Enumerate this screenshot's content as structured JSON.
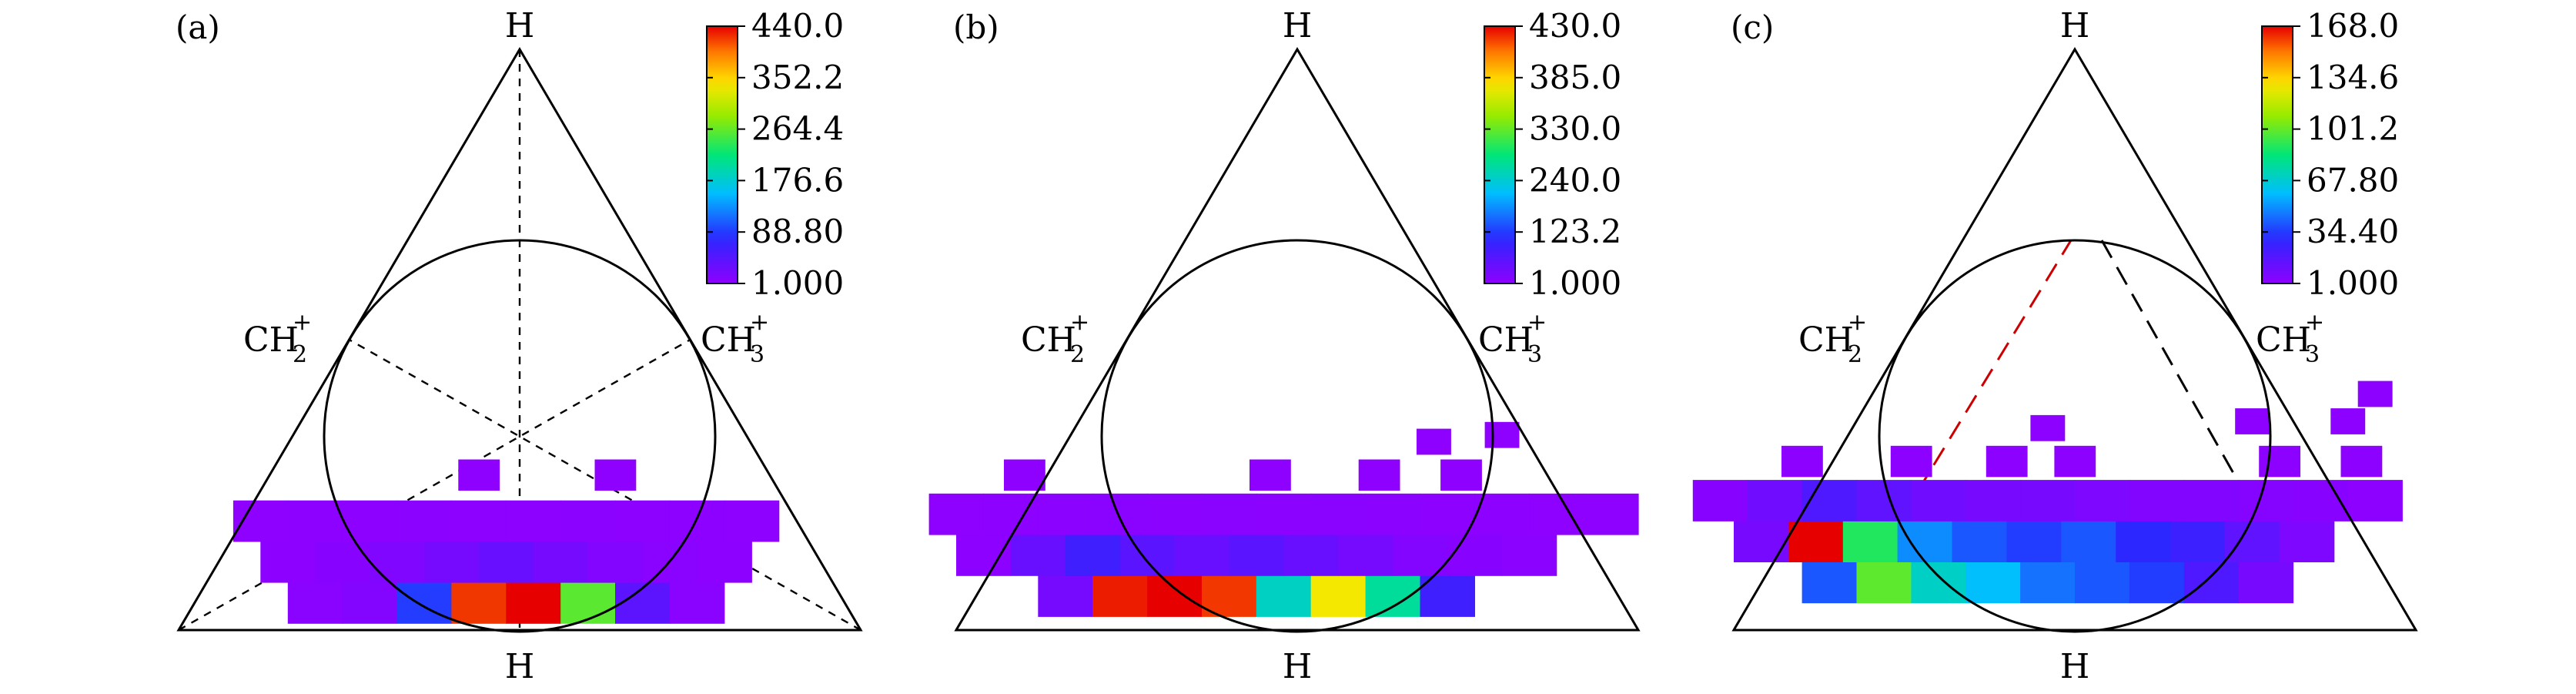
{
  "panels": [
    {
      "label": "(a)",
      "top_label": "H",
      "bottom_label": "H",
      "left_label": "CH",
      "left_sub": "2",
      "left_sup": "+",
      "right_label": "CH",
      "right_sup_sub": "3",
      "right_sup": "+",
      "colorbar_ticks": [
        "440.0",
        "352.2",
        "264.4",
        "176.6",
        "88.80",
        "1.000"
      ],
      "cmin": 1,
      "cmax": 440,
      "guides": "medians"
    },
    {
      "label": "(b)",
      "top_label": "H",
      "bottom_label": "H",
      "left_label": "CH",
      "left_sub": "2",
      "left_sup": "+",
      "right_label": "CH",
      "right_sup_sub": "3",
      "right_sup": "+",
      "colorbar_ticks": [
        "430.0",
        "385.0",
        "330.0",
        "240.0",
        "123.2",
        "1.000"
      ],
      "cmin": 1,
      "cmax": 430,
      "guides": "none"
    },
    {
      "label": "(c)",
      "top_label": "H",
      "bottom_label": "H",
      "left_label": "CH",
      "left_sub": "2",
      "left_sup": "+",
      "right_label": "CH",
      "right_sup_sub": "3",
      "right_sup": "+",
      "colorbar_ticks": [
        "168.0",
        "134.6",
        "101.2",
        "67.80",
        "34.40",
        "1.000"
      ],
      "cmin": 1,
      "cmax": 168,
      "guides": "dashed-pair",
      "guide_colors": [
        "#cc0000",
        "#000000"
      ]
    }
  ],
  "chart_data": [
    {
      "type": "heatmap",
      "subtype": "dalitz-triangle",
      "colormap": "rainbow (violet-blue-cyan-green-yellow-red)",
      "cells": [
        {
          "u": -0.3,
          "v": 0.03,
          "w": 0.08,
          "val": 5
        },
        {
          "u": -0.22,
          "v": 0.03,
          "w": 0.08,
          "val": 10
        },
        {
          "u": -0.14,
          "v": 0.03,
          "w": 0.08,
          "val": 90
        },
        {
          "u": -0.06,
          "v": 0.03,
          "w": 0.08,
          "val": 420
        },
        {
          "u": 0.02,
          "v": 0.03,
          "w": 0.08,
          "val": 440
        },
        {
          "u": 0.1,
          "v": 0.03,
          "w": 0.08,
          "val": 260
        },
        {
          "u": 0.18,
          "v": 0.03,
          "w": 0.08,
          "val": 40
        },
        {
          "u": 0.26,
          "v": 0.03,
          "w": 0.08,
          "val": 5
        },
        {
          "u": -0.34,
          "v": 0.09,
          "w": 0.08,
          "val": 3
        },
        {
          "u": -0.26,
          "v": 0.09,
          "w": 0.08,
          "val": 6
        },
        {
          "u": -0.18,
          "v": 0.09,
          "w": 0.08,
          "val": 12
        },
        {
          "u": -0.1,
          "v": 0.09,
          "w": 0.08,
          "val": 20
        },
        {
          "u": -0.02,
          "v": 0.09,
          "w": 0.08,
          "val": 30
        },
        {
          "u": 0.06,
          "v": 0.09,
          "w": 0.08,
          "val": 20
        },
        {
          "u": 0.14,
          "v": 0.09,
          "w": 0.08,
          "val": 10
        },
        {
          "u": 0.22,
          "v": 0.09,
          "w": 0.08,
          "val": 5
        },
        {
          "u": 0.3,
          "v": 0.09,
          "w": 0.08,
          "val": 3
        },
        {
          "u": -0.38,
          "v": 0.15,
          "w": 0.08,
          "val": 2
        },
        {
          "u": -0.3,
          "v": 0.15,
          "w": 0.08,
          "val": 3
        },
        {
          "u": -0.22,
          "v": 0.15,
          "w": 0.08,
          "val": 3
        },
        {
          "u": -0.14,
          "v": 0.15,
          "w": 0.08,
          "val": 4
        },
        {
          "u": -0.06,
          "v": 0.15,
          "w": 0.08,
          "val": 3
        },
        {
          "u": 0.02,
          "v": 0.15,
          "w": 0.08,
          "val": 3
        },
        {
          "u": 0.1,
          "v": 0.15,
          "w": 0.08,
          "val": 4
        },
        {
          "u": 0.18,
          "v": 0.15,
          "w": 0.08,
          "val": 3
        },
        {
          "u": 0.26,
          "v": 0.15,
          "w": 0.08,
          "val": 3
        },
        {
          "u": 0.34,
          "v": 0.15,
          "w": 0.08,
          "val": 2
        },
        {
          "u": -0.06,
          "v": 0.22,
          "w": 0.06,
          "val": 2
        },
        {
          "u": 0.14,
          "v": 0.22,
          "w": 0.06,
          "val": 2
        }
      ]
    },
    {
      "type": "heatmap",
      "subtype": "dalitz-triangle",
      "colormap": "rainbow (violet-blue-cyan-green-yellow-red)",
      "cells": [
        {
          "u": -0.34,
          "v": 0.04,
          "w": 0.08,
          "val": 20
        },
        {
          "u": -0.26,
          "v": 0.04,
          "w": 0.08,
          "val": 420
        },
        {
          "u": -0.18,
          "v": 0.04,
          "w": 0.08,
          "val": 430
        },
        {
          "u": -0.1,
          "v": 0.04,
          "w": 0.08,
          "val": 410
        },
        {
          "u": -0.02,
          "v": 0.04,
          "w": 0.08,
          "val": 180
        },
        {
          "u": 0.06,
          "v": 0.04,
          "w": 0.08,
          "val": 330
        },
        {
          "u": 0.14,
          "v": 0.04,
          "w": 0.08,
          "val": 200
        },
        {
          "u": 0.22,
          "v": 0.04,
          "w": 0.08,
          "val": 60
        },
        {
          "u": -0.46,
          "v": 0.1,
          "w": 0.08,
          "val": 3
        },
        {
          "u": -0.38,
          "v": 0.1,
          "w": 0.08,
          "val": 30
        },
        {
          "u": -0.3,
          "v": 0.1,
          "w": 0.08,
          "val": 60
        },
        {
          "u": -0.22,
          "v": 0.1,
          "w": 0.08,
          "val": 40
        },
        {
          "u": -0.14,
          "v": 0.1,
          "w": 0.08,
          "val": 30
        },
        {
          "u": -0.06,
          "v": 0.1,
          "w": 0.08,
          "val": 40
        },
        {
          "u": 0.02,
          "v": 0.1,
          "w": 0.08,
          "val": 30
        },
        {
          "u": 0.1,
          "v": 0.1,
          "w": 0.08,
          "val": 20
        },
        {
          "u": 0.18,
          "v": 0.1,
          "w": 0.08,
          "val": 10
        },
        {
          "u": 0.26,
          "v": 0.1,
          "w": 0.08,
          "val": 6
        },
        {
          "u": 0.34,
          "v": 0.1,
          "w": 0.08,
          "val": 4
        },
        {
          "u": -0.5,
          "v": 0.16,
          "w": 0.08,
          "val": 2
        },
        {
          "u": -0.42,
          "v": 0.16,
          "w": 0.08,
          "val": 3
        },
        {
          "u": -0.34,
          "v": 0.16,
          "w": 0.08,
          "val": 4
        },
        {
          "u": -0.26,
          "v": 0.16,
          "w": 0.08,
          "val": 5
        },
        {
          "u": -0.18,
          "v": 0.16,
          "w": 0.08,
          "val": 4
        },
        {
          "u": -0.1,
          "v": 0.16,
          "w": 0.08,
          "val": 5
        },
        {
          "u": -0.02,
          "v": 0.16,
          "w": 0.08,
          "val": 4
        },
        {
          "u": 0.06,
          "v": 0.16,
          "w": 0.08,
          "val": 5
        },
        {
          "u": 0.14,
          "v": 0.16,
          "w": 0.08,
          "val": 4
        },
        {
          "u": 0.22,
          "v": 0.16,
          "w": 0.08,
          "val": 3
        },
        {
          "u": 0.3,
          "v": 0.16,
          "w": 0.08,
          "val": 3
        },
        {
          "u": 0.38,
          "v": 0.16,
          "w": 0.08,
          "val": 2
        },
        {
          "u": 0.46,
          "v": 0.16,
          "w": 0.08,
          "val": 2
        },
        {
          "u": -0.4,
          "v": 0.22,
          "w": 0.06,
          "val": 2
        },
        {
          "u": -0.04,
          "v": 0.22,
          "w": 0.06,
          "val": 2
        },
        {
          "u": 0.12,
          "v": 0.22,
          "w": 0.06,
          "val": 2
        },
        {
          "u": 0.24,
          "v": 0.22,
          "w": 0.06,
          "val": 2
        },
        {
          "u": 0.2,
          "v": 0.27,
          "w": 0.05,
          "val": 2
        },
        {
          "u": 0.3,
          "v": 0.28,
          "w": 0.05,
          "val": 2
        }
      ]
    },
    {
      "type": "heatmap",
      "subtype": "dalitz-triangle",
      "colormap": "rainbow (violet-blue-cyan-green-yellow-red)",
      "cells": [
        {
          "u": -0.36,
          "v": 0.06,
          "w": 0.08,
          "val": 40
        },
        {
          "u": -0.28,
          "v": 0.06,
          "w": 0.08,
          "val": 100
        },
        {
          "u": -0.2,
          "v": 0.06,
          "w": 0.08,
          "val": 70
        },
        {
          "u": -0.12,
          "v": 0.06,
          "w": 0.08,
          "val": 60
        },
        {
          "u": -0.04,
          "v": 0.06,
          "w": 0.08,
          "val": 45
        },
        {
          "u": 0.04,
          "v": 0.06,
          "w": 0.08,
          "val": 40
        },
        {
          "u": 0.12,
          "v": 0.06,
          "w": 0.08,
          "val": 35
        },
        {
          "u": 0.2,
          "v": 0.06,
          "w": 0.08,
          "val": 20
        },
        {
          "u": 0.28,
          "v": 0.06,
          "w": 0.08,
          "val": 8
        },
        {
          "u": -0.46,
          "v": 0.12,
          "w": 0.08,
          "val": 8
        },
        {
          "u": -0.38,
          "v": 0.12,
          "w": 0.08,
          "val": 168
        },
        {
          "u": -0.3,
          "v": 0.12,
          "w": 0.08,
          "val": 90
        },
        {
          "u": -0.22,
          "v": 0.12,
          "w": 0.08,
          "val": 50
        },
        {
          "u": -0.14,
          "v": 0.12,
          "w": 0.08,
          "val": 40
        },
        {
          "u": -0.06,
          "v": 0.12,
          "w": 0.08,
          "val": 35
        },
        {
          "u": 0.02,
          "v": 0.12,
          "w": 0.08,
          "val": 40
        },
        {
          "u": 0.1,
          "v": 0.12,
          "w": 0.08,
          "val": 30
        },
        {
          "u": 0.18,
          "v": 0.12,
          "w": 0.08,
          "val": 25
        },
        {
          "u": 0.26,
          "v": 0.12,
          "w": 0.08,
          "val": 15
        },
        {
          "u": 0.34,
          "v": 0.12,
          "w": 0.08,
          "val": 6
        },
        {
          "u": -0.52,
          "v": 0.18,
          "w": 0.08,
          "val": 3
        },
        {
          "u": -0.44,
          "v": 0.18,
          "w": 0.08,
          "val": 10
        },
        {
          "u": -0.36,
          "v": 0.18,
          "w": 0.08,
          "val": 20
        },
        {
          "u": -0.28,
          "v": 0.18,
          "w": 0.08,
          "val": 15
        },
        {
          "u": -0.2,
          "v": 0.18,
          "w": 0.08,
          "val": 10
        },
        {
          "u": -0.12,
          "v": 0.18,
          "w": 0.08,
          "val": 8
        },
        {
          "u": -0.04,
          "v": 0.18,
          "w": 0.08,
          "val": 8
        },
        {
          "u": 0.04,
          "v": 0.18,
          "w": 0.08,
          "val": 6
        },
        {
          "u": 0.12,
          "v": 0.18,
          "w": 0.08,
          "val": 5
        },
        {
          "u": 0.2,
          "v": 0.18,
          "w": 0.08,
          "val": 5
        },
        {
          "u": 0.28,
          "v": 0.18,
          "w": 0.08,
          "val": 4
        },
        {
          "u": 0.36,
          "v": 0.18,
          "w": 0.08,
          "val": 3
        },
        {
          "u": 0.44,
          "v": 0.18,
          "w": 0.08,
          "val": 2
        },
        {
          "u": -0.4,
          "v": 0.24,
          "w": 0.06,
          "val": 2
        },
        {
          "u": -0.24,
          "v": 0.24,
          "w": 0.06,
          "val": 2
        },
        {
          "u": -0.1,
          "v": 0.24,
          "w": 0.06,
          "val": 2
        },
        {
          "u": 0.0,
          "v": 0.24,
          "w": 0.06,
          "val": 2
        },
        {
          "u": 0.3,
          "v": 0.24,
          "w": 0.06,
          "val": 2
        },
        {
          "u": 0.42,
          "v": 0.24,
          "w": 0.06,
          "val": 2
        },
        {
          "u": -0.04,
          "v": 0.29,
          "w": 0.05,
          "val": 2
        },
        {
          "u": 0.26,
          "v": 0.3,
          "w": 0.05,
          "val": 2
        },
        {
          "u": 0.4,
          "v": 0.3,
          "w": 0.05,
          "val": 2
        },
        {
          "u": 0.44,
          "v": 0.34,
          "w": 0.05,
          "val": 2
        }
      ]
    }
  ]
}
